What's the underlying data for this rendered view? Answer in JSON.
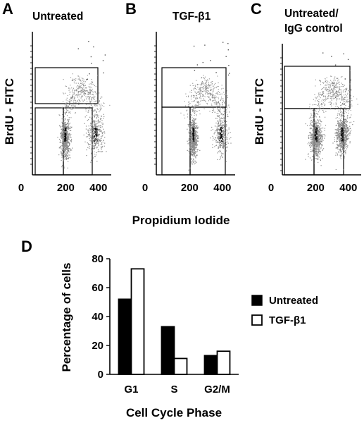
{
  "chart_data": [
    {
      "type": "scatter",
      "panel": "A",
      "title": "Untreated",
      "ylabel": "BrdU - FITC",
      "x_ticks": [
        "0",
        "200",
        "400"
      ],
      "gates": [
        "G1",
        "S",
        "G2/M"
      ],
      "populations": [
        {
          "x": 195,
          "spread": 12,
          "density": "high"
        },
        {
          "x": 380,
          "spread": 22,
          "density": "medium"
        }
      ]
    },
    {
      "type": "scatter",
      "panel": "B",
      "title": "TGF-β1",
      "x_ticks": [
        "0",
        "200",
        "400"
      ],
      "gates": [
        "G1",
        "S",
        "G2/M"
      ],
      "populations": [
        {
          "x": 220,
          "spread": 10,
          "density": "high"
        },
        {
          "x": 390,
          "spread": 18,
          "density": "medium"
        }
      ]
    },
    {
      "type": "scatter",
      "panel": "C",
      "title": "Untreated/\nIgG control",
      "ylabel": "BrdU - FITC",
      "x_ticks": [
        "0",
        "200",
        "400"
      ],
      "gates": [
        "G1",
        "S",
        "G2/M"
      ],
      "populations": [
        {
          "x": 200,
          "spread": 16,
          "density": "high"
        },
        {
          "x": 360,
          "spread": 16,
          "density": "high"
        }
      ]
    },
    {
      "type": "bar",
      "panel": "D",
      "xlabel": "Cell Cycle Phase",
      "ylabel": "Percentage of cells",
      "categories": [
        "G1",
        "S",
        "G2/M"
      ],
      "ylim": [
        0,
        80
      ],
      "y_ticks": [
        0,
        20,
        40,
        60,
        80
      ],
      "series": [
        {
          "name": "Untreated",
          "values": [
            52,
            33,
            13
          ],
          "color": "#000000"
        },
        {
          "name": "TGF-β1",
          "values": [
            73,
            11,
            16
          ],
          "color": "#ffffff"
        }
      ],
      "legend": "right"
    }
  ],
  "shared_xlabel": "Propidium Iodide",
  "panel_letters": [
    "A",
    "B",
    "C",
    "D"
  ],
  "title_lines": {
    "a": "Untreated",
    "b": "TGF-β1",
    "c1": "Untreated/",
    "c2": "IgG control"
  },
  "ylabel_a": "BrdU - FITC",
  "ylabel_c": "BrdU - FITC",
  "ylabel_d": "Percentage of cells",
  "xlabel_d": "Cell Cycle Phase",
  "legend": {
    "untreated": "Untreated",
    "tgf": "TGF-β1"
  },
  "colors": {
    "ink": "#000000",
    "gate_fill": "#ffffff",
    "cloud": "#8a8a8a"
  }
}
